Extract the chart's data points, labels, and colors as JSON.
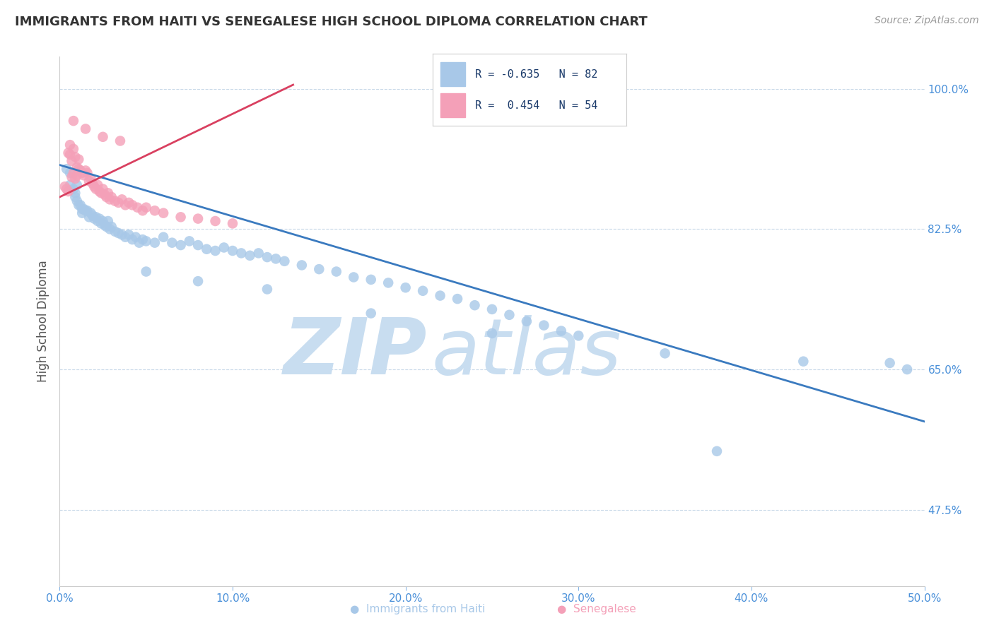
{
  "title": "IMMIGRANTS FROM HAITI VS SENEGALESE HIGH SCHOOL DIPLOMA CORRELATION CHART",
  "source": "Source: ZipAtlas.com",
  "ylabel": "High School Diploma",
  "xlim": [
    0.0,
    0.5
  ],
  "ylim": [
    0.38,
    1.04
  ],
  "xticks": [
    0.0,
    0.1,
    0.2,
    0.3,
    0.4,
    0.5
  ],
  "xticklabels": [
    "0.0%",
    "10.0%",
    "20.0%",
    "30.0%",
    "40.0%",
    "50.0%"
  ],
  "ytick_positions": [
    0.475,
    0.65,
    0.825,
    1.0
  ],
  "yticklabels": [
    "47.5%",
    "65.0%",
    "82.5%",
    "100.0%"
  ],
  "blue_color": "#a8c8e8",
  "pink_color": "#f4a0b8",
  "blue_line_color": "#3a7abf",
  "pink_line_color": "#d94060",
  "legend_blue_r": "R = -0.635",
  "legend_blue_n": "N = 82",
  "legend_pink_r": "R =  0.454",
  "legend_pink_n": "N = 54",
  "title_color": "#333333",
  "axis_label_color": "#555555",
  "tick_color": "#4a90d9",
  "grid_color": "#c8d8e8",
  "watermark_zip": "ZIP",
  "watermark_atlas": "atlas",
  "watermark_color": "#c8ddf0",
  "blue_line_x0": 0.0,
  "blue_line_x1": 0.5,
  "blue_line_y0": 0.905,
  "blue_line_y1": 0.585,
  "pink_line_x0": 0.0,
  "pink_line_x1": 0.135,
  "pink_line_y0": 0.865,
  "pink_line_y1": 1.005,
  "blue_scatter_x": [
    0.004,
    0.006,
    0.006,
    0.008,
    0.009,
    0.009,
    0.01,
    0.01,
    0.011,
    0.012,
    0.013,
    0.013,
    0.014,
    0.015,
    0.016,
    0.017,
    0.018,
    0.019,
    0.02,
    0.021,
    0.022,
    0.023,
    0.024,
    0.025,
    0.026,
    0.027,
    0.028,
    0.029,
    0.03,
    0.032,
    0.034,
    0.036,
    0.038,
    0.04,
    0.042,
    0.044,
    0.046,
    0.048,
    0.05,
    0.055,
    0.06,
    0.065,
    0.07,
    0.075,
    0.08,
    0.085,
    0.09,
    0.095,
    0.1,
    0.105,
    0.11,
    0.115,
    0.12,
    0.125,
    0.13,
    0.14,
    0.15,
    0.16,
    0.17,
    0.18,
    0.19,
    0.2,
    0.21,
    0.22,
    0.23,
    0.24,
    0.25,
    0.26,
    0.27,
    0.28,
    0.29,
    0.3,
    0.05,
    0.08,
    0.12,
    0.18,
    0.25,
    0.35,
    0.43,
    0.48,
    0.49,
    0.38
  ],
  "blue_scatter_y": [
    0.9,
    0.895,
    0.88,
    0.875,
    0.87,
    0.865,
    0.88,
    0.86,
    0.855,
    0.855,
    0.85,
    0.845,
    0.85,
    0.848,
    0.848,
    0.84,
    0.845,
    0.842,
    0.838,
    0.84,
    0.835,
    0.838,
    0.832,
    0.835,
    0.83,
    0.828,
    0.835,
    0.825,
    0.828,
    0.822,
    0.82,
    0.818,
    0.815,
    0.818,
    0.812,
    0.815,
    0.808,
    0.812,
    0.81,
    0.808,
    0.815,
    0.808,
    0.805,
    0.81,
    0.805,
    0.8,
    0.798,
    0.802,
    0.798,
    0.795,
    0.792,
    0.795,
    0.79,
    0.788,
    0.785,
    0.78,
    0.775,
    0.772,
    0.765,
    0.762,
    0.758,
    0.752,
    0.748,
    0.742,
    0.738,
    0.73,
    0.725,
    0.718,
    0.71,
    0.705,
    0.698,
    0.692,
    0.772,
    0.76,
    0.75,
    0.72,
    0.695,
    0.67,
    0.66,
    0.658,
    0.65,
    0.548
  ],
  "pink_scatter_x": [
    0.003,
    0.004,
    0.005,
    0.005,
    0.006,
    0.006,
    0.007,
    0.007,
    0.008,
    0.008,
    0.009,
    0.009,
    0.01,
    0.01,
    0.011,
    0.011,
    0.012,
    0.013,
    0.014,
    0.015,
    0.016,
    0.017,
    0.018,
    0.019,
    0.02,
    0.021,
    0.022,
    0.023,
    0.024,
    0.025,
    0.026,
    0.027,
    0.028,
    0.029,
    0.03,
    0.032,
    0.034,
    0.036,
    0.038,
    0.04,
    0.042,
    0.045,
    0.048,
    0.05,
    0.055,
    0.06,
    0.07,
    0.08,
    0.09,
    0.1,
    0.008,
    0.015,
    0.025,
    0.035
  ],
  "pink_scatter_y": [
    0.878,
    0.875,
    0.872,
    0.92,
    0.918,
    0.93,
    0.89,
    0.91,
    0.895,
    0.925,
    0.888,
    0.915,
    0.892,
    0.902,
    0.9,
    0.912,
    0.898,
    0.895,
    0.892,
    0.898,
    0.895,
    0.885,
    0.888,
    0.882,
    0.878,
    0.875,
    0.88,
    0.872,
    0.87,
    0.875,
    0.868,
    0.865,
    0.87,
    0.862,
    0.865,
    0.86,
    0.858,
    0.862,
    0.855,
    0.858,
    0.855,
    0.852,
    0.848,
    0.852,
    0.848,
    0.845,
    0.84,
    0.838,
    0.835,
    0.832,
    0.96,
    0.95,
    0.94,
    0.935
  ]
}
